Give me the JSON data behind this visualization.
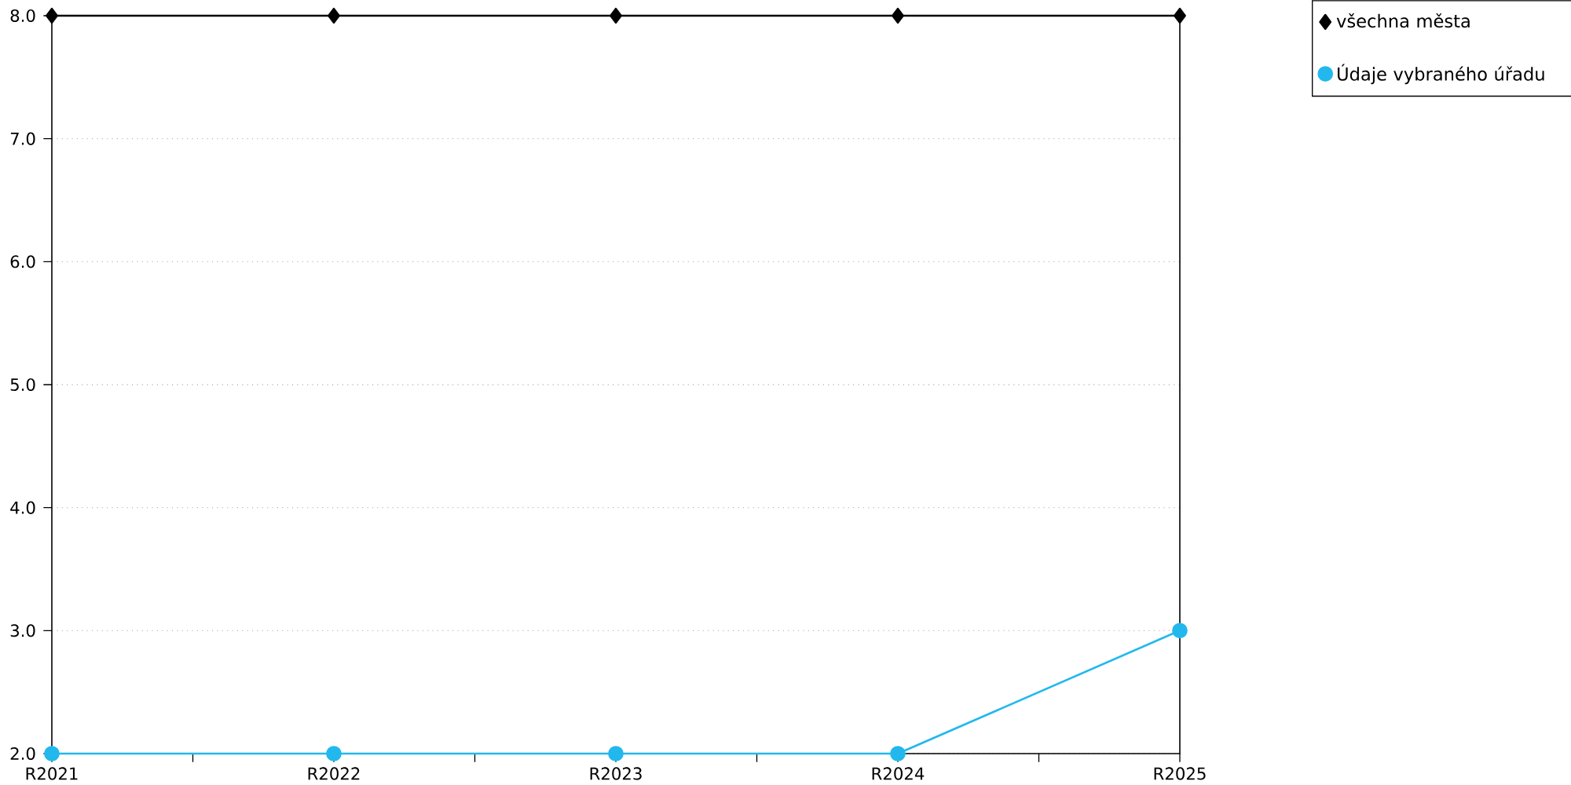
{
  "chart_data": {
    "type": "line",
    "categories": [
      "R2021",
      "R2022",
      "R2023",
      "R2024",
      "R2025"
    ],
    "series": [
      {
        "name": "všechna města",
        "color": "#000000",
        "marker": "diamond",
        "values": [
          8,
          8,
          8,
          8,
          8
        ]
      },
      {
        "name": "Údaje vybraného úřadu",
        "color": "#22b8ee",
        "marker": "circle",
        "values": [
          2,
          2,
          2,
          2,
          3
        ]
      }
    ],
    "ylim": [
      2,
      8
    ],
    "yticks": [
      {
        "value": 2,
        "label": "2.0"
      },
      {
        "value": 3,
        "label": "3.0"
      },
      {
        "value": 4,
        "label": "4.0"
      },
      {
        "value": 5,
        "label": "5.0"
      },
      {
        "value": 6,
        "label": "6.0"
      },
      {
        "value": 7,
        "label": "7.0"
      },
      {
        "value": 8,
        "label": "8.0"
      }
    ],
    "grid": "y",
    "legend": "top right"
  }
}
